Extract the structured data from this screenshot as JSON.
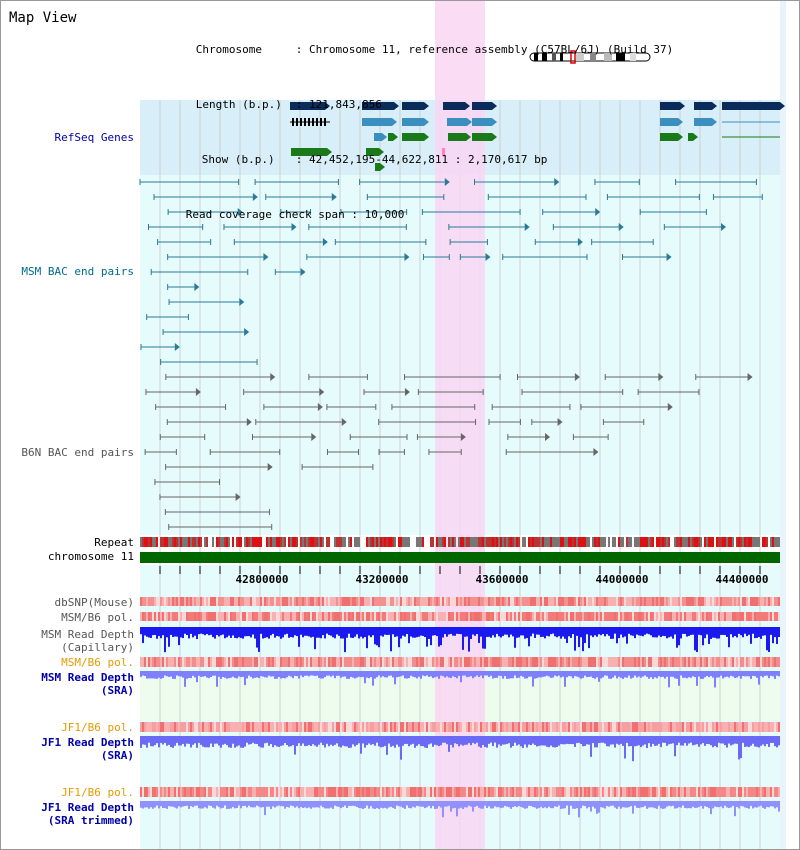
{
  "title": "Map View",
  "info": {
    "chromosome_label": "Chromosome",
    "chromosome_value": "Chromosome 11, reference assembly (C57BL/6J) (Build 37)",
    "length_label": "Length (b.p.)",
    "length_value": "121,843,856",
    "show_label": "Show (b.p.)",
    "show_value": "42,452,195-44,622,811 : 2,170,617 bp",
    "span_label": "Read coverage check span",
    "span_value": "10,000"
  },
  "tracks": {
    "refseq": "RefSeq Genes",
    "msm_bac": "MSM BAC end pairs",
    "b6n_bac": "B6N BAC end pairs",
    "repeat": "Repeat",
    "chromosome": "chromosome 11",
    "dbsnp": "dbSNP(Mouse)",
    "msm_b6_pol_1": "MSM/B6 pol.",
    "msm_read_depth_cap_1": "MSM Read Depth",
    "msm_read_depth_cap_2": "(Capillary)",
    "msm_b6_pol_2": "MSM/B6 pol.",
    "msm_read_depth_sra_1": "MSM Read Depth",
    "msm_read_depth_sra_2": "(SRA)",
    "jf1_b6_pol_1": "JF1/B6 pol.",
    "jf1_read_depth_sra_1": "JF1 Read Depth",
    "jf1_read_depth_sra_2": "(SRA)",
    "jf1_b6_pol_2": "JF1/B6 pol.",
    "jf1_read_depth_trim_1": "JF1 Read Depth",
    "jf1_read_depth_trim_2": "(SRA trimmed)"
  },
  "axis": {
    "ticks": [
      "42800000",
      "43200000",
      "43600000",
      "44000000",
      "44400000"
    ]
  },
  "colors": {
    "highlight": "#f9d6f3",
    "refseq_bg": "#d8eef8",
    "lane_bg": "#e6fbfc",
    "msm_color": "#2a7a96",
    "b6n_color": "#666666",
    "gene_dark": "#0b2b5a",
    "gene_mid": "#3a8fbf",
    "gene_green": "#1a7a1a",
    "chrom_green": "#006600",
    "depth_blue": "#1a1af0",
    "depth_light": "#8080ff"
  }
}
